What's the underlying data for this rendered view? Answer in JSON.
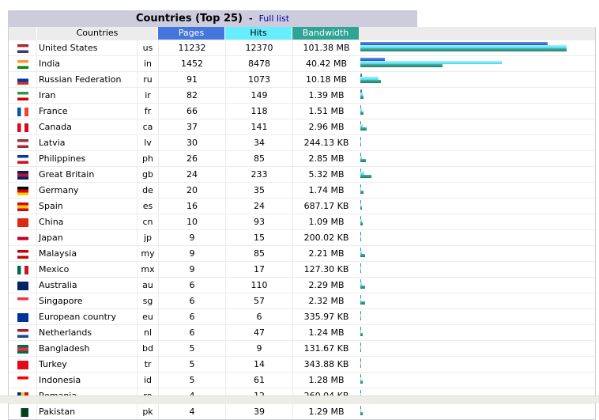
{
  "title": "Countries (Top 25)",
  "separator": "-",
  "full_list_link": "Full list",
  "headers": {
    "countries": "Countries",
    "pages": "Pages",
    "hits": "Hits",
    "bandwidth": "Bandwidth"
  },
  "colors": {
    "pages": "#4477dd",
    "hits": "#66eeff",
    "bandwidth": "#2ea495",
    "title_bg": "#ccccdd"
  },
  "rows": [
    {
      "name": "United States",
      "code": "us",
      "pages": "11232",
      "hits": "12370",
      "bandwidth": "101.38 MB",
      "flag": [
        "#b22234",
        "#fff",
        "#3c3b6e"
      ]
    },
    {
      "name": "India",
      "code": "in",
      "pages": "1452",
      "hits": "8478",
      "bandwidth": "40.42 MB",
      "flag": [
        "#ff9933",
        "#fff",
        "#138808"
      ]
    },
    {
      "name": "Russian Federation",
      "code": "ru",
      "pages": "91",
      "hits": "1073",
      "bandwidth": "10.18 MB",
      "flag": [
        "#fff",
        "#0039a6",
        "#d52b1e"
      ]
    },
    {
      "name": "Iran",
      "code": "ir",
      "pages": "82",
      "hits": "149",
      "bandwidth": "1.39 MB",
      "flag": [
        "#239f40",
        "#fff",
        "#da0000"
      ]
    },
    {
      "name": "France",
      "code": "fr",
      "pages": "66",
      "hits": "118",
      "bandwidth": "1.51 MB",
      "flag": [
        "#0055a4",
        "#fff",
        "#ef4135"
      ],
      "v": true
    },
    {
      "name": "Canada",
      "code": "ca",
      "pages": "37",
      "hits": "141",
      "bandwidth": "2.96 MB",
      "flag": [
        "#d80621",
        "#fff",
        "#d80621"
      ],
      "v": true
    },
    {
      "name": "Latvia",
      "code": "lv",
      "pages": "30",
      "hits": "34",
      "bandwidth": "244.13 KB",
      "flag": [
        "#9e3039",
        "#fff",
        "#9e3039"
      ]
    },
    {
      "name": "Philippines",
      "code": "ph",
      "pages": "26",
      "hits": "85",
      "bandwidth": "2.85 MB",
      "flag": [
        "#0038a8",
        "#fff",
        "#ce1126"
      ]
    },
    {
      "name": "Great Britain",
      "code": "gb",
      "pages": "24",
      "hits": "233",
      "bandwidth": "5.32 MB",
      "flag": [
        "#012169",
        "#c8102e",
        "#012169"
      ]
    },
    {
      "name": "Germany",
      "code": "de",
      "pages": "20",
      "hits": "35",
      "bandwidth": "1.74 MB",
      "flag": [
        "#000",
        "#dd0000",
        "#ffce00"
      ]
    },
    {
      "name": "Spain",
      "code": "es",
      "pages": "16",
      "hits": "24",
      "bandwidth": "687.17 KB",
      "flag": [
        "#c60b1e",
        "#ffc400",
        "#c60b1e"
      ]
    },
    {
      "name": "China",
      "code": "cn",
      "pages": "10",
      "hits": "93",
      "bandwidth": "1.09 MB",
      "flag": [
        "#de2910",
        "#de2910",
        "#de2910"
      ]
    },
    {
      "name": "Japan",
      "code": "jp",
      "pages": "9",
      "hits": "15",
      "bandwidth": "200.02 KB",
      "flag": [
        "#fff",
        "#bc002d",
        "#fff"
      ]
    },
    {
      "name": "Malaysia",
      "code": "my",
      "pages": "9",
      "hits": "85",
      "bandwidth": "2.21 MB",
      "flag": [
        "#cc0001",
        "#fff",
        "#cc0001"
      ]
    },
    {
      "name": "Mexico",
      "code": "mx",
      "pages": "9",
      "hits": "17",
      "bandwidth": "127.30 KB",
      "flag": [
        "#006847",
        "#fff",
        "#ce1126"
      ],
      "v": true
    },
    {
      "name": "Australia",
      "code": "au",
      "pages": "6",
      "hits": "110",
      "bandwidth": "2.29 MB",
      "flag": [
        "#012169",
        "#012169",
        "#012169"
      ]
    },
    {
      "name": "Singapore",
      "code": "sg",
      "pages": "6",
      "hits": "57",
      "bandwidth": "2.32 MB",
      "flag": [
        "#ef3340",
        "#fff",
        "#fff"
      ]
    },
    {
      "name": "European country",
      "code": "eu",
      "pages": "6",
      "hits": "6",
      "bandwidth": "335.97 KB",
      "flag": [
        "#003399",
        "#003399",
        "#003399"
      ]
    },
    {
      "name": "Netherlands",
      "code": "nl",
      "pages": "6",
      "hits": "47",
      "bandwidth": "1.24 MB",
      "flag": [
        "#ae1c28",
        "#fff",
        "#21468b"
      ]
    },
    {
      "name": "Bangladesh",
      "code": "bd",
      "pages": "5",
      "hits": "9",
      "bandwidth": "131.67 KB",
      "flag": [
        "#006a4e",
        "#f42a41",
        "#006a4e"
      ]
    },
    {
      "name": "Turkey",
      "code": "tr",
      "pages": "5",
      "hits": "14",
      "bandwidth": "343.88 KB",
      "flag": [
        "#e30a17",
        "#e30a17",
        "#e30a17"
      ]
    },
    {
      "name": "Indonesia",
      "code": "id",
      "pages": "5",
      "hits": "61",
      "bandwidth": "1.28 MB",
      "flag": [
        "#ff0000",
        "#fff",
        "#fff"
      ]
    },
    {
      "name": "Romania",
      "code": "ro",
      "pages": "4",
      "hits": "12",
      "bandwidth": "260.04 KB",
      "flag": [
        "#002b7f",
        "#fcd116",
        "#ce1126"
      ],
      "v": true
    },
    {
      "name": "Pakistan",
      "code": "pk",
      "pages": "4",
      "hits": "39",
      "bandwidth": "1.29 MB",
      "flag": [
        "#fff",
        "#01411c",
        "#01411c"
      ],
      "v": true
    }
  ]
}
